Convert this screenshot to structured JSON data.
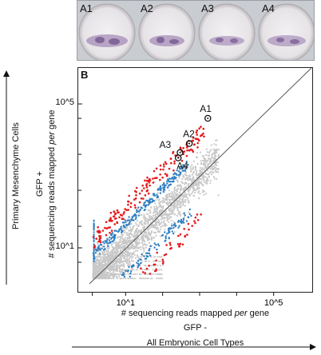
{
  "panel_a": {
    "labels": [
      "A1",
      "A2",
      "A3",
      "A4"
    ]
  },
  "panel_b": {
    "label": "B"
  },
  "y_axis": {
    "label": "# sequencing reads mapped per gene",
    "condition": "GFP +",
    "cell_type": "Primary Mesenchyme Cells"
  },
  "x_axis": {
    "label": "# sequencing reads mapped per gene",
    "condition": "GFP -",
    "cell_type": "All Embryonic Cell Types"
  },
  "colors": {
    "background_points": "#c8c8c8",
    "enriched_red": "#e41a1c",
    "enriched_blue": "#2f7fc1",
    "diagonal": "#555555"
  },
  "chart_data": {
    "type": "scatter",
    "title": "",
    "xlabel": "# sequencing reads mapped per gene",
    "ylabel": "# sequencing reads mapped per gene",
    "x_scale": "log",
    "y_scale": "log",
    "xlim_log10": [
      0,
      6
    ],
    "ylim_log10": [
      0,
      6
    ],
    "x_ticks": [
      {
        "value_log10": 1,
        "label": "10^1"
      },
      {
        "value_log10": 5,
        "label": "10^5"
      }
    ],
    "y_ticks": [
      {
        "value_log10": 1,
        "label": "10^1"
      },
      {
        "value_log10": 5,
        "label": "10^5"
      }
    ],
    "reference_line": "y = x",
    "labeled_genes": [
      {
        "name": "A1",
        "x_log10": 3.2,
        "y_log10": 4.6
      },
      {
        "name": "A2",
        "x_log10": 2.7,
        "y_log10": 3.9
      },
      {
        "name": "A3",
        "x_log10": 2.45,
        "y_log10": 3.65
      },
      {
        "name": "A4",
        "x_log10": 2.4,
        "y_log10": 3.5
      }
    ],
    "series": [
      {
        "name": "",
        "color": "#c8c8c8",
        "description_values": "bulk of genes along diagonal"
      },
      {
        "name": "",
        "color": "#2f7fc1",
        "description_values": "enriched genes"
      },
      {
        "name": "",
        "color": "#e41a1c",
        "description_values": "highly enriched genes"
      }
    ],
    "grid": false
  }
}
